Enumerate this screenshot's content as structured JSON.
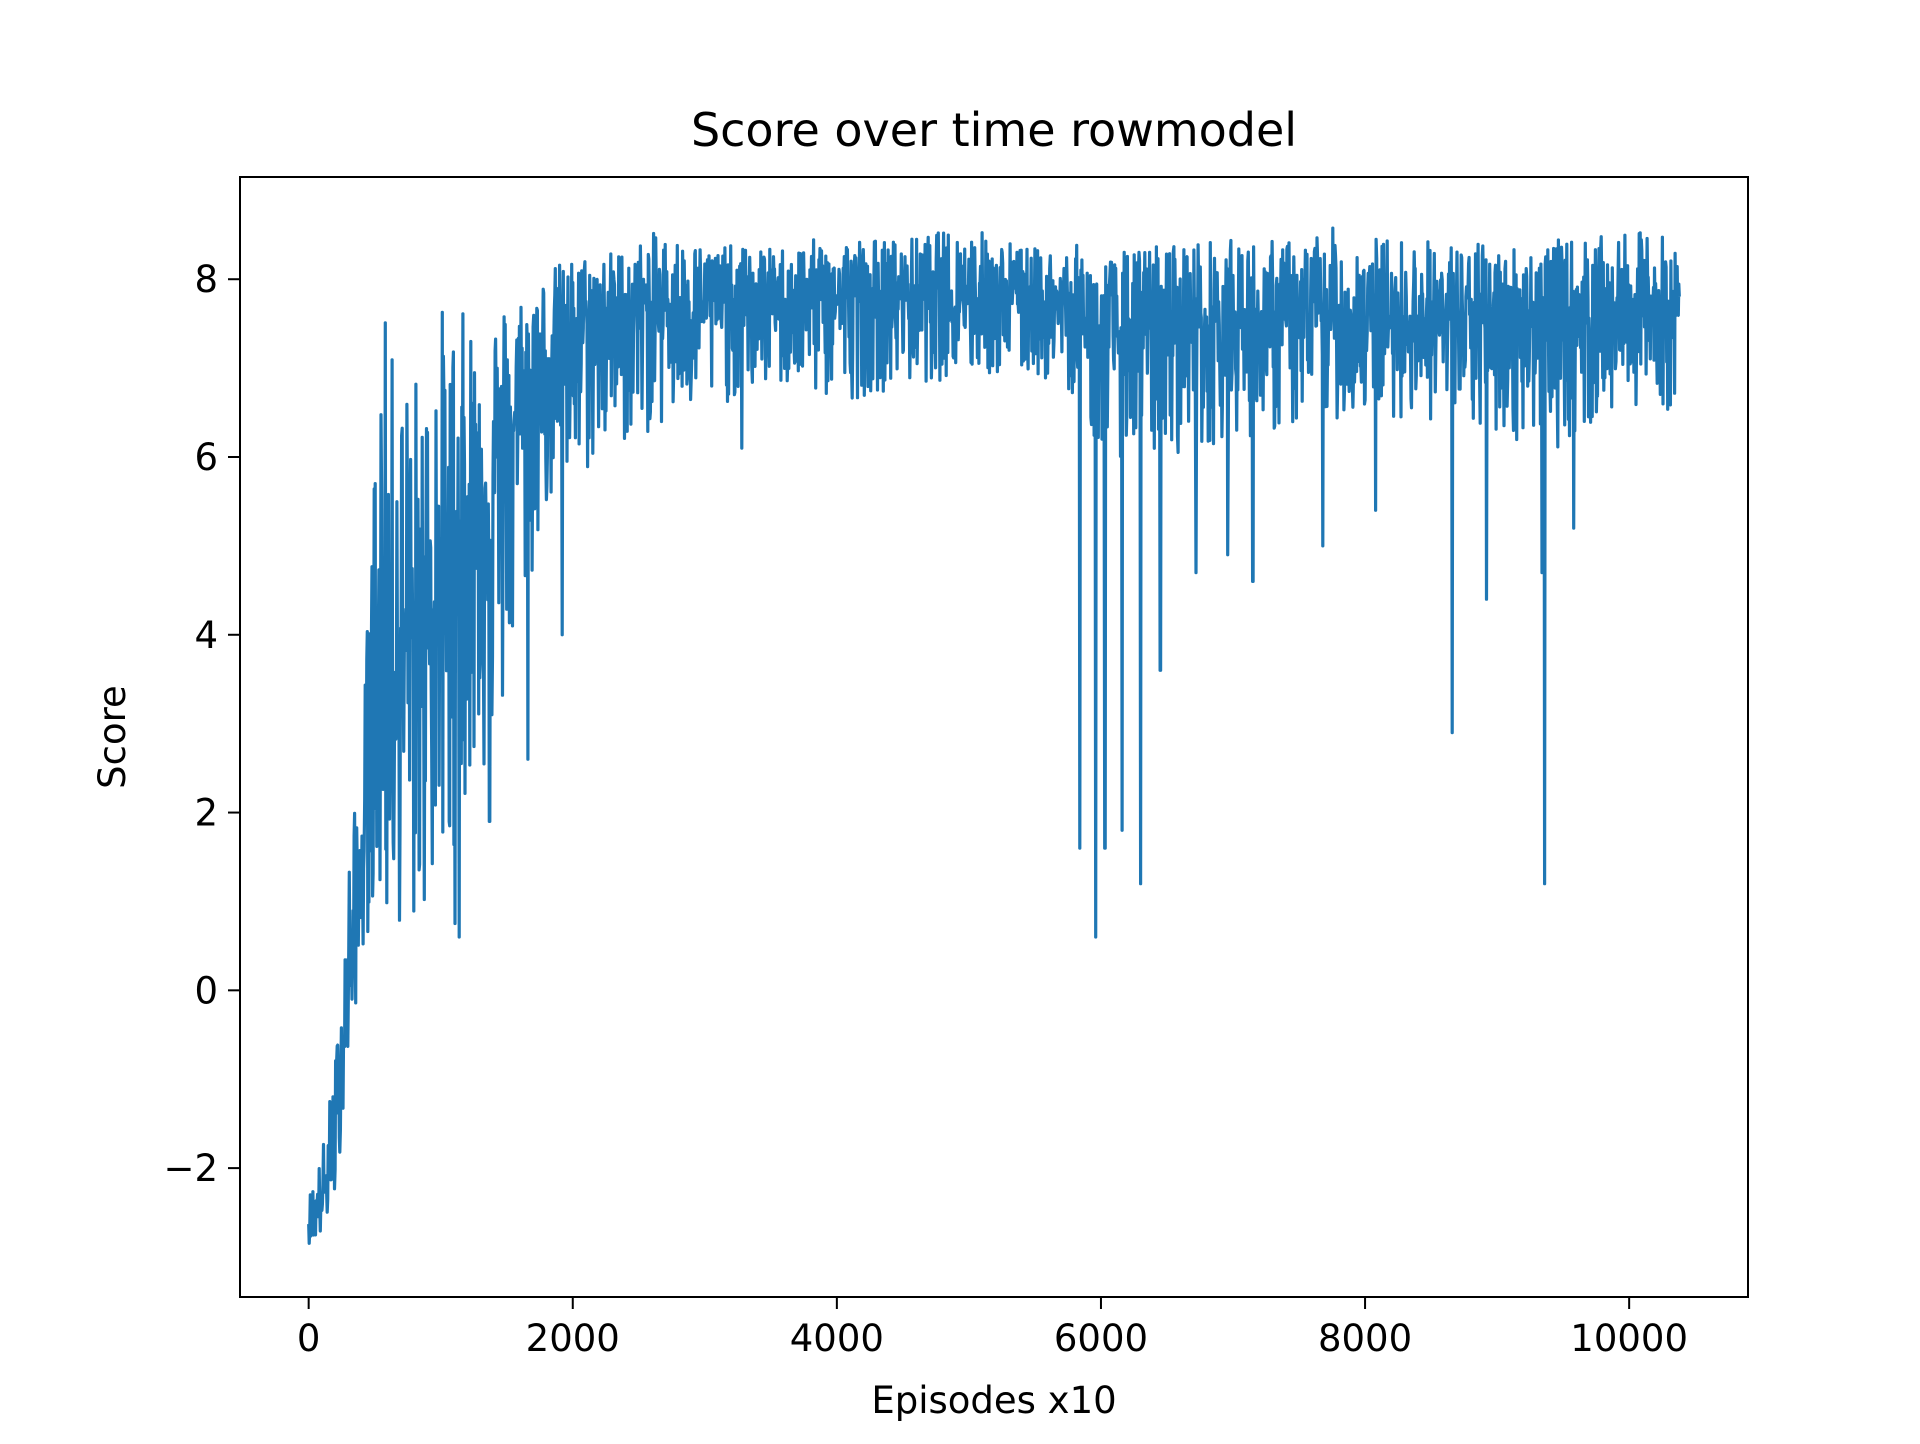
{
  "chart_data": {
    "type": "line",
    "title": "Score over time rowmodel",
    "xlabel": "Episodes x10",
    "ylabel": "Score",
    "xlim": [
      -520,
      10900
    ],
    "ylim": [
      -3.45,
      9.15
    ],
    "xticks": [
      0,
      2000,
      4000,
      6000,
      8000,
      10000
    ],
    "xtick_labels": [
      "0",
      "2000",
      "4000",
      "6000",
      "8000",
      "10000"
    ],
    "yticks": [
      -2,
      0,
      2,
      4,
      6,
      8
    ],
    "ytick_labels": [
      "−2",
      "0",
      "2",
      "4",
      "6",
      "8"
    ],
    "grid": false,
    "legend": "none",
    "series": [
      {
        "color": "#1f77b4",
        "n_points": 10380,
        "x_range": [
          0,
          10380
        ],
        "trend": {
          "x": [
            0,
            100,
            200,
            300,
            400,
            500,
            600,
            700,
            800,
            900,
            1000,
            1100,
            1200,
            1300,
            1400,
            1500,
            1600,
            1700,
            1800,
            2000,
            2200,
            2400,
            2600,
            3000,
            3500,
            4000,
            4500,
            5000,
            5500,
            5800,
            6000,
            6500,
            7000,
            7500,
            8000,
            8500,
            9000,
            9500,
            10000,
            10380
          ],
          "y": [
            -2.6,
            -2.4,
            -1.6,
            0.0,
            1.3,
            3.2,
            3.5,
            3.8,
            4.0,
            4.2,
            4.5,
            4.8,
            5.2,
            5.5,
            5.8,
            6.2,
            6.5,
            6.9,
            7.1,
            7.35,
            7.55,
            7.65,
            7.7,
            7.75,
            7.75,
            7.8,
            7.8,
            7.8,
            7.75,
            7.65,
            7.3,
            7.5,
            7.5,
            7.55,
            7.55,
            7.55,
            7.5,
            7.55,
            7.6,
            7.6
          ]
        },
        "upper_envelope": {
          "x": [
            0,
            100,
            200,
            300,
            400,
            500,
            540,
            600,
            700,
            800,
            900,
            950,
            1100,
            1300,
            1500,
            1700,
            1900,
            2100,
            2400,
            2650,
            3000,
            3500,
            4000,
            4500,
            4800,
            5000,
            5500,
            5800,
            6000,
            6500,
            7000,
            7500,
            7700,
            8000,
            8500,
            9000,
            9500,
            10000,
            10200,
            10380
          ],
          "y": [
            -2.3,
            -1.8,
            -0.8,
            1.5,
            2.6,
            6.2,
            8.1,
            7.3,
            7.0,
            7.0,
            7.0,
            7.85,
            7.6,
            7.75,
            7.8,
            8.0,
            8.2,
            8.3,
            8.35,
            8.55,
            8.4,
            8.35,
            8.5,
            8.45,
            8.55,
            8.6,
            8.35,
            8.4,
            8.25,
            8.45,
            8.45,
            8.45,
            8.6,
            8.5,
            8.45,
            8.4,
            8.45,
            8.5,
            8.6,
            8.3
          ]
        },
        "lower_envelope": {
          "x": [
            0,
            100,
            200,
            300,
            400,
            500,
            600,
            700,
            800,
            900,
            1000,
            1100,
            1200,
            1300,
            1400,
            1500,
            1600,
            1700,
            1800,
            2000,
            2200,
            2500,
            3000,
            3500,
            4000,
            4500,
            5000,
            5500,
            5800,
            6000,
            6500,
            7000,
            7500,
            8000,
            8500,
            9000,
            9500,
            10000,
            10380
          ],
          "y": [
            -2.85,
            -2.8,
            -2.4,
            -0.8,
            0.3,
            1.0,
            0.6,
            0.7,
            0.5,
            0.9,
            1.2,
            0.6,
            2.3,
            2.3,
            2.5,
            3.2,
            4.0,
            4.6,
            5.4,
            5.5,
            6.0,
            6.2,
            6.5,
            6.8,
            6.6,
            6.8,
            6.9,
            6.9,
            6.7,
            6.0,
            6.0,
            6.2,
            6.3,
            6.5,
            6.4,
            6.2,
            6.1,
            6.6,
            6.5
          ]
        },
        "notable_dips": [
          {
            "x": 1140,
            "y": 0.6
          },
          {
            "x": 1370,
            "y": 1.9
          },
          {
            "x": 1660,
            "y": 2.6
          },
          {
            "x": 1920,
            "y": 4.0
          },
          {
            "x": 3280,
            "y": 6.1
          },
          {
            "x": 5840,
            "y": 1.6
          },
          {
            "x": 5960,
            "y": 0.6
          },
          {
            "x": 6030,
            "y": 1.6
          },
          {
            "x": 6160,
            "y": 1.8
          },
          {
            "x": 6300,
            "y": 1.2
          },
          {
            "x": 6450,
            "y": 3.6
          },
          {
            "x": 6720,
            "y": 4.7
          },
          {
            "x": 6960,
            "y": 4.9
          },
          {
            "x": 7150,
            "y": 4.6
          },
          {
            "x": 7680,
            "y": 5.0
          },
          {
            "x": 8080,
            "y": 5.4
          },
          {
            "x": 8660,
            "y": 2.9
          },
          {
            "x": 8920,
            "y": 4.4
          },
          {
            "x": 9340,
            "y": 4.7
          },
          {
            "x": 9360,
            "y": 1.2
          },
          {
            "x": 9580,
            "y": 5.2
          }
        ]
      }
    ]
  }
}
